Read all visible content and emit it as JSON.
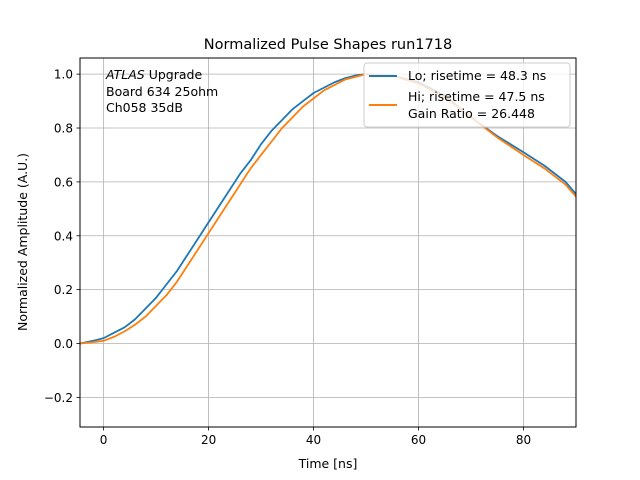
{
  "chart_data": {
    "type": "line",
    "title": "Normalized Pulse Shapes run1718",
    "xlabel": "Time [ns]",
    "ylabel": "Normalized Amplitude (A.U.)",
    "xlim": [
      -4.5,
      90
    ],
    "ylim": [
      -0.31,
      1.06
    ],
    "xticks": [
      0,
      20,
      40,
      60,
      80
    ],
    "yticks": [
      -0.2,
      0.0,
      0.2,
      0.4,
      0.6,
      0.8,
      1.0
    ],
    "xtick_labels": [
      "0",
      "20",
      "40",
      "60",
      "80"
    ],
    "ytick_labels": [
      "−0.2",
      "0.0",
      "0.2",
      "0.4",
      "0.6",
      "0.8",
      "1.0"
    ],
    "grid": true,
    "legend_position": "top-right",
    "annotation": {
      "italic_word": "ATLAS",
      "line1_rest": " Upgrade",
      "line2": " Board 634 25ohm",
      "line3": " Ch058 35dB"
    },
    "series": [
      {
        "name": "Lo; risetime = 48.3 ns",
        "color": "#1f77b4",
        "x": [
          -4.5,
          -2,
          0,
          2,
          4,
          6,
          8,
          10,
          12,
          14,
          16,
          18,
          20,
          22,
          24,
          26,
          28,
          30,
          32,
          34,
          36,
          38,
          40,
          42,
          44,
          46,
          48,
          50,
          55,
          60,
          65,
          70,
          75,
          80,
          84,
          88,
          90
        ],
        "y": [
          0.0,
          0.01,
          0.02,
          0.04,
          0.06,
          0.09,
          0.13,
          0.17,
          0.22,
          0.27,
          0.33,
          0.39,
          0.45,
          0.51,
          0.57,
          0.63,
          0.68,
          0.74,
          0.79,
          0.83,
          0.87,
          0.9,
          0.93,
          0.95,
          0.97,
          0.985,
          0.995,
          1.0,
          0.995,
          0.97,
          0.92,
          0.84,
          0.77,
          0.71,
          0.66,
          0.6,
          0.555
        ]
      },
      {
        "name": "Hi; risetime = 47.5 ns",
        "name_line2": " Gain Ratio = 26.448",
        "color": "#ff7f0e",
        "x": [
          -4.5,
          -2,
          0,
          2,
          4,
          6,
          8,
          10,
          12,
          14,
          16,
          18,
          20,
          22,
          24,
          26,
          28,
          30,
          32,
          34,
          36,
          38,
          40,
          42,
          44,
          46,
          48,
          50,
          55,
          60,
          65,
          70,
          75,
          80,
          84,
          88,
          90
        ],
        "y": [
          0.0,
          0.005,
          0.01,
          0.025,
          0.045,
          0.07,
          0.1,
          0.14,
          0.18,
          0.23,
          0.29,
          0.35,
          0.41,
          0.47,
          0.53,
          0.59,
          0.65,
          0.7,
          0.75,
          0.8,
          0.84,
          0.88,
          0.91,
          0.94,
          0.96,
          0.98,
          0.99,
          1.0,
          0.995,
          0.965,
          0.915,
          0.84,
          0.765,
          0.7,
          0.65,
          0.59,
          0.545
        ]
      }
    ]
  }
}
